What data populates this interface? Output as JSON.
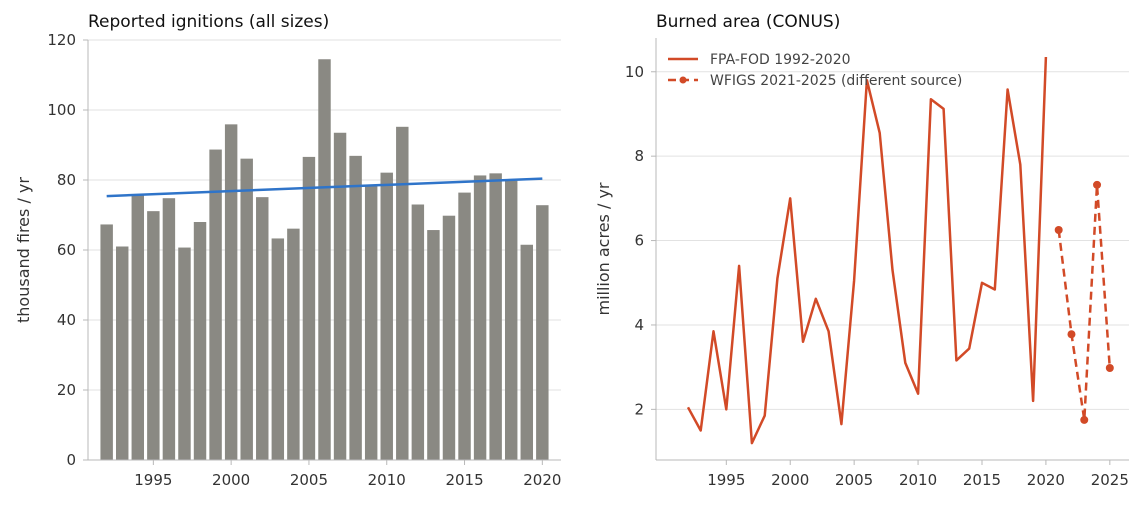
{
  "chart_data": [
    {
      "type": "bar",
      "title": "Reported ignitions (all sizes)",
      "ylabel": "thousand fires / yr",
      "xlabel": "",
      "ylim": [
        0,
        120
      ],
      "xlim": [
        1990.8,
        2021.2
      ],
      "yticks": [
        0,
        20,
        40,
        60,
        80,
        100,
        120
      ],
      "xticks": [
        1995,
        2000,
        2005,
        2010,
        2015,
        2020
      ],
      "grid": "y",
      "bar_color": "#8a8983",
      "x": [
        1992,
        1993,
        1994,
        1995,
        1996,
        1997,
        1998,
        1999,
        2000,
        2001,
        2002,
        2003,
        2004,
        2005,
        2006,
        2007,
        2008,
        2009,
        2010,
        2011,
        2012,
        2013,
        2014,
        2015,
        2016,
        2017,
        2018,
        2019,
        2020
      ],
      "values": [
        67.3,
        61.0,
        75.7,
        71.1,
        74.8,
        60.7,
        68.0,
        88.7,
        95.9,
        86.1,
        75.1,
        63.3,
        66.1,
        86.6,
        114.5,
        93.5,
        86.9,
        78.3,
        82.1,
        95.2,
        73.0,
        65.7,
        69.8,
        76.4,
        81.3,
        81.9,
        79.8,
        61.5,
        72.8
      ],
      "trend": {
        "color": "#2f74c9",
        "x": [
          1992,
          2020
        ],
        "y": [
          75.4,
          80.4
        ]
      }
    },
    {
      "type": "line",
      "title": "Burned area (CONUS)",
      "ylabel": "million acres / yr",
      "xlabel": "",
      "ylim": [
        0.8,
        10.8
      ],
      "xlim": [
        1989.5,
        2026.5
      ],
      "yticks": [
        2,
        4,
        6,
        8,
        10
      ],
      "xticks": [
        1995,
        2000,
        2005,
        2010,
        2015,
        2020,
        2025
      ],
      "grid": "y",
      "legend": "top-left",
      "series": [
        {
          "name": "FPA-FOD 1992-2020",
          "color": "#d24a27",
          "style": "solid",
          "markers": false,
          "x": [
            1992,
            1993,
            1994,
            1995,
            1996,
            1997,
            1998,
            1999,
            2000,
            2001,
            2002,
            2003,
            2004,
            2005,
            2006,
            2007,
            2008,
            2009,
            2010,
            2011,
            2012,
            2013,
            2014,
            2015,
            2016,
            2017,
            2018,
            2019,
            2020
          ],
          "values": [
            2.05,
            1.5,
            3.85,
            2.0,
            5.4,
            1.2,
            1.85,
            5.1,
            7.0,
            3.6,
            4.62,
            3.85,
            1.65,
            5.05,
            9.8,
            8.55,
            5.3,
            3.1,
            2.37,
            9.35,
            9.12,
            3.16,
            3.44,
            5.0,
            4.84,
            9.58,
            7.8,
            2.2,
            10.35
          ]
        },
        {
          "name": "WFIGS 2021-2025 (different source)",
          "color": "#d24a27",
          "style": "dashed",
          "markers": true,
          "x": [
            2021,
            2022,
            2023,
            2024,
            2025
          ],
          "values": [
            6.25,
            3.78,
            1.75,
            7.32,
            2.98
          ]
        }
      ]
    }
  ]
}
